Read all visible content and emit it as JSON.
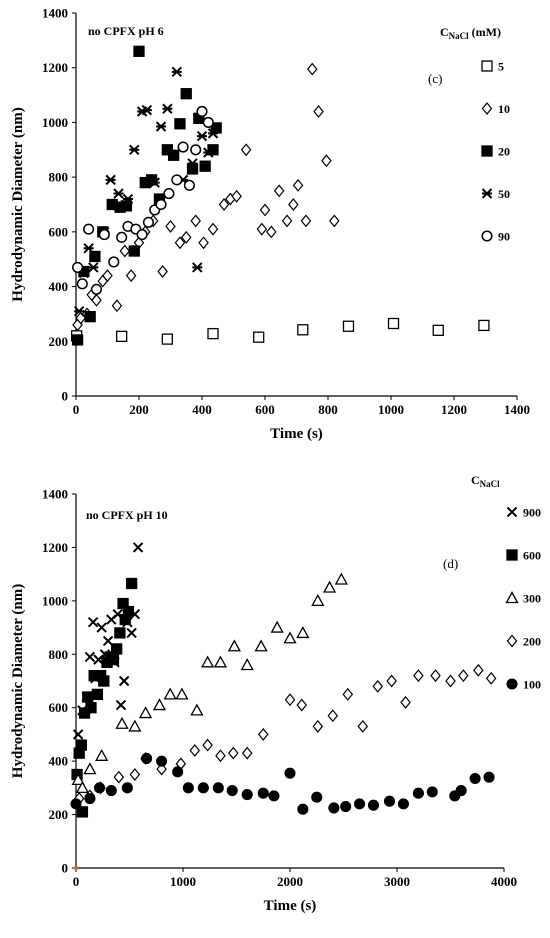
{
  "chart_data": [
    {
      "type": "scatter",
      "annotation": "no CPFX pH 6",
      "panel_label": "(c)",
      "legend_title": "C",
      "legend_title_sub": "NaCl",
      "legend_title_suffix": " (mM)",
      "xlabel": "Time (s)",
      "ylabel": "Hydrodynamic Diameter (nm)",
      "xlim": [
        0,
        1400
      ],
      "ylim": [
        0,
        1400
      ],
      "xticks": [
        "0",
        "200",
        "400",
        "600",
        "800",
        "1000",
        "1200",
        "1400"
      ],
      "yticks": [
        "0",
        "200",
        "400",
        "600",
        "800",
        "1000",
        "1200",
        "1400"
      ],
      "grid": false,
      "legend_position": "right",
      "series": [
        {
          "name": "5",
          "marker": "square-open",
          "points": [
            [
              2,
              220
            ],
            [
              145,
              218
            ],
            [
              290,
              208
            ],
            [
              435,
              228
            ],
            [
              580,
              215
            ],
            [
              720,
              242
            ],
            [
              865,
              255
            ],
            [
              1008,
              265
            ],
            [
              1150,
              240
            ],
            [
              1295,
              258
            ]
          ]
        },
        {
          "name": "10",
          "marker": "diamond-open",
          "points": [
            [
              5,
              260
            ],
            [
              15,
              285
            ],
            [
              35,
              300
            ],
            [
              50,
              370
            ],
            [
              65,
              350
            ],
            [
              85,
              420
            ],
            [
              100,
              440
            ],
            [
              130,
              330
            ],
            [
              155,
              530
            ],
            [
              175,
              440
            ],
            [
              200,
              560
            ],
            [
              220,
              600
            ],
            [
              245,
              640
            ],
            [
              275,
              455
            ],
            [
              300,
              620
            ],
            [
              330,
              560
            ],
            [
              350,
              580
            ],
            [
              380,
              640
            ],
            [
              405,
              560
            ],
            [
              435,
              610
            ],
            [
              470,
              700
            ],
            [
              490,
              720
            ],
            [
              510,
              730
            ],
            [
              540,
              900
            ],
            [
              590,
              610
            ],
            [
              600,
              680
            ],
            [
              620,
              600
            ],
            [
              645,
              750
            ],
            [
              670,
              640
            ],
            [
              690,
              700
            ],
            [
              705,
              770
            ],
            [
              730,
              640
            ],
            [
              750,
              1195
            ],
            [
              770,
              1040
            ],
            [
              795,
              860
            ],
            [
              820,
              640
            ]
          ]
        },
        {
          "name": "20",
          "marker": "square-filled",
          "points": [
            [
              5,
              205
            ],
            [
              25,
              455
            ],
            [
              45,
              290
            ],
            [
              60,
              510
            ],
            [
              85,
              600
            ],
            [
              115,
              700
            ],
            [
              140,
              690
            ],
            [
              160,
              695
            ],
            [
              185,
              530
            ],
            [
              200,
              1260
            ],
            [
              220,
              780
            ],
            [
              240,
              790
            ],
            [
              265,
              720
            ],
            [
              290,
              900
            ],
            [
              310,
              880
            ],
            [
              330,
              995
            ],
            [
              350,
              1105
            ],
            [
              370,
              830
            ],
            [
              390,
              1015
            ],
            [
              410,
              840
            ],
            [
              435,
              900
            ],
            [
              445,
              980
            ]
          ]
        },
        {
          "name": "50",
          "marker": "star",
          "points": [
            [
              10,
              310
            ],
            [
              25,
              450
            ],
            [
              40,
              540
            ],
            [
              55,
              470
            ],
            [
              90,
              600
            ],
            [
              110,
              790
            ],
            [
              135,
              740
            ],
            [
              165,
              720
            ],
            [
              185,
              900
            ],
            [
              210,
              1040
            ],
            [
              225,
              1045
            ],
            [
              250,
              780
            ],
            [
              270,
              985
            ],
            [
              290,
              1050
            ],
            [
              320,
              1185
            ],
            [
              340,
              790
            ],
            [
              370,
              850
            ],
            [
              385,
              470
            ],
            [
              400,
              950
            ],
            [
              420,
              890
            ],
            [
              435,
              960
            ]
          ]
        },
        {
          "name": "90",
          "marker": "circle-open",
          "points": [
            [
              5,
              470
            ],
            [
              20,
              410
            ],
            [
              40,
              610
            ],
            [
              65,
              390
            ],
            [
              90,
              590
            ],
            [
              120,
              490
            ],
            [
              145,
              580
            ],
            [
              165,
              620
            ],
            [
              190,
              610
            ],
            [
              210,
              590
            ],
            [
              230,
              635
            ],
            [
              250,
              680
            ],
            [
              270,
              700
            ],
            [
              295,
              740
            ],
            [
              320,
              790
            ],
            [
              340,
              910
            ],
            [
              360,
              770
            ],
            [
              380,
              900
            ],
            [
              400,
              1040
            ],
            [
              420,
              1000
            ]
          ]
        }
      ]
    },
    {
      "type": "scatter",
      "annotation": "no CPFX pH 10",
      "panel_label": "(d)",
      "legend_title": "C",
      "legend_title_sub": "NaCl",
      "legend_title_suffix": "",
      "xlabel": "Time (s)",
      "ylabel": "Hydrodynamic Diameter (nm)",
      "xlim": [
        0,
        4000
      ],
      "ylim": [
        0,
        1400
      ],
      "xticks": [
        "0",
        "1000",
        "2000",
        "3000",
        "4000"
      ],
      "yticks": [
        "0",
        "200",
        "400",
        "600",
        "800",
        "1000",
        "1200",
        "1400"
      ],
      "grid": false,
      "legend_position": "right",
      "series": [
        {
          "name": "900",
          "marker": "x",
          "points": [
            [
              20,
              500
            ],
            [
              60,
              590
            ],
            [
              100,
              640
            ],
            [
              130,
              790
            ],
            [
              160,
              920
            ],
            [
              180,
              710
            ],
            [
              210,
              780
            ],
            [
              240,
              900
            ],
            [
              270,
              800
            ],
            [
              300,
              850
            ],
            [
              330,
              930
            ],
            [
              360,
              770
            ],
            [
              390,
              950
            ],
            [
              420,
              610
            ],
            [
              450,
              700
            ],
            [
              480,
              920
            ],
            [
              520,
              880
            ],
            [
              550,
              950
            ],
            [
              580,
              1200
            ]
          ]
        },
        {
          "name": "600",
          "marker": "square-filled",
          "points": [
            [
              10,
              350
            ],
            [
              30,
              430
            ],
            [
              50,
              460
            ],
            [
              60,
              210
            ],
            [
              80,
              580
            ],
            [
              110,
              640
            ],
            [
              140,
              600
            ],
            [
              170,
              720
            ],
            [
              200,
              650
            ],
            [
              230,
              720
            ],
            [
              260,
              700
            ],
            [
              290,
              770
            ],
            [
              320,
              790
            ],
            [
              350,
              780
            ],
            [
              380,
              820
            ],
            [
              410,
              880
            ],
            [
              440,
              990
            ],
            [
              460,
              930
            ],
            [
              490,
              960
            ],
            [
              520,
              1065
            ]
          ]
        },
        {
          "name": "300",
          "marker": "triangle-open",
          "points": [
            [
              20,
              330
            ],
            [
              60,
              300
            ],
            [
              130,
              370
            ],
            [
              240,
              420
            ],
            [
              430,
              540
            ],
            [
              550,
              530
            ],
            [
              650,
              580
            ],
            [
              780,
              610
            ],
            [
              880,
              650
            ],
            [
              990,
              650
            ],
            [
              1130,
              590
            ],
            [
              1230,
              770
            ],
            [
              1350,
              770
            ],
            [
              1480,
              830
            ],
            [
              1600,
              760
            ],
            [
              1730,
              830
            ],
            [
              1880,
              900
            ],
            [
              2000,
              860
            ],
            [
              2120,
              880
            ],
            [
              2260,
              1000
            ],
            [
              2370,
              1050
            ],
            [
              2480,
              1080
            ]
          ]
        },
        {
          "name": "200",
          "marker": "diamond-open",
          "points": [
            [
              30,
              260
            ],
            [
              130,
              270
            ],
            [
              230,
              300
            ],
            [
              400,
              340
            ],
            [
              550,
              350
            ],
            [
              650,
              410
            ],
            [
              800,
              370
            ],
            [
              980,
              390
            ],
            [
              1110,
              440
            ],
            [
              1230,
              460
            ],
            [
              1350,
              420
            ],
            [
              1470,
              430
            ],
            [
              1600,
              430
            ],
            [
              1750,
              500
            ],
            [
              2000,
              630
            ],
            [
              2110,
              610
            ],
            [
              2260,
              530
            ],
            [
              2400,
              570
            ],
            [
              2540,
              650
            ],
            [
              2680,
              530
            ],
            [
              2820,
              680
            ],
            [
              2950,
              700
            ],
            [
              3080,
              620
            ],
            [
              3200,
              720
            ],
            [
              3360,
              720
            ],
            [
              3500,
              700
            ],
            [
              3620,
              720
            ],
            [
              3760,
              740
            ],
            [
              3880,
              710
            ]
          ]
        },
        {
          "name": "100",
          "marker": "circle-filled",
          "points": [
            [
              0,
              240
            ],
            [
              60,
              210
            ],
            [
              130,
              260
            ],
            [
              220,
              300
            ],
            [
              330,
              290
            ],
            [
              480,
              300
            ],
            [
              660,
              410
            ],
            [
              800,
              400
            ],
            [
              950,
              360
            ],
            [
              1050,
              300
            ],
            [
              1190,
              300
            ],
            [
              1330,
              300
            ],
            [
              1460,
              290
            ],
            [
              1600,
              275
            ],
            [
              1750,
              280
            ],
            [
              1850,
              270
            ],
            [
              2000,
              355
            ],
            [
              2120,
              220
            ],
            [
              2250,
              265
            ],
            [
              2410,
              225
            ],
            [
              2520,
              230
            ],
            [
              2650,
              240
            ],
            [
              2780,
              235
            ],
            [
              2930,
              250
            ],
            [
              3060,
              240
            ],
            [
              3200,
              280
            ],
            [
              3330,
              285
            ],
            [
              3540,
              270
            ],
            [
              3600,
              290
            ],
            [
              3730,
              335
            ],
            [
              3860,
              340
            ]
          ]
        }
      ]
    }
  ]
}
